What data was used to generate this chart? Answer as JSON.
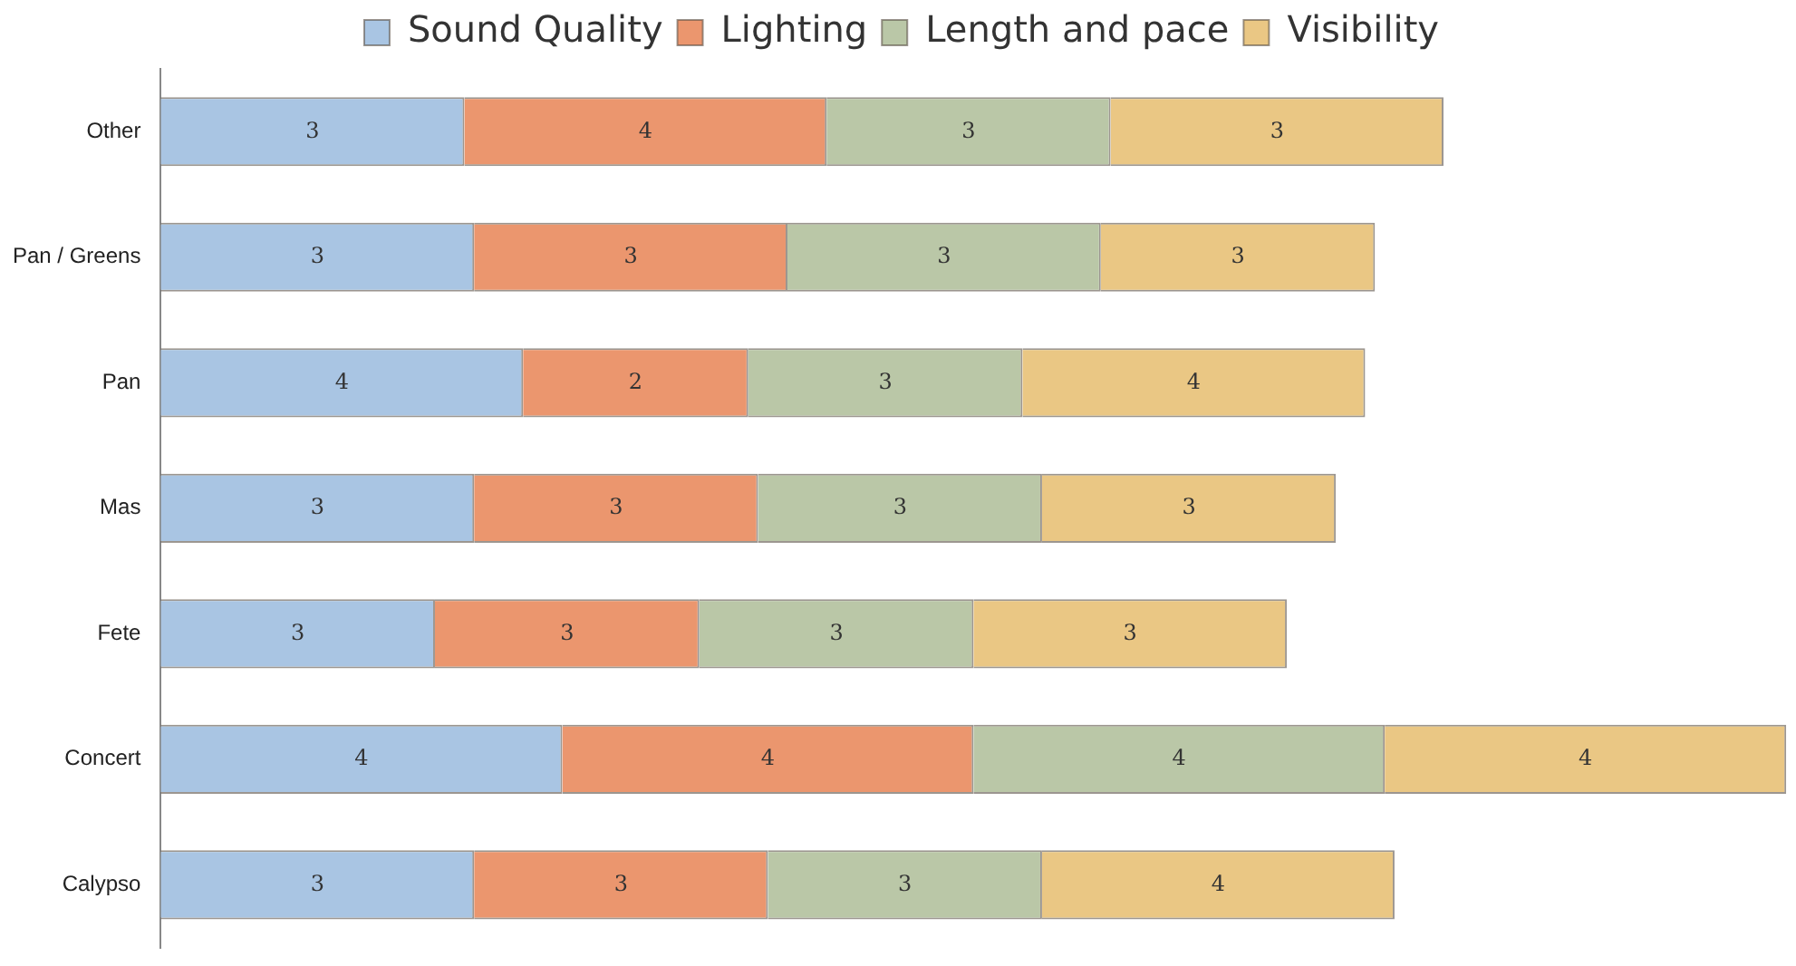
{
  "chart_data": {
    "type": "bar",
    "orientation": "horizontal",
    "stacked": true,
    "legend": "top",
    "tick_labels": "y",
    "categories": [
      "Other",
      "Pan / Greens",
      "Pan",
      "Mas",
      "Fete",
      "Concert",
      "Calypso"
    ],
    "xlim": [
      0,
      16.7
    ],
    "series": [
      {
        "name": "Sound Quality",
        "color": "#a9c5e3",
        "values": [
          3.1,
          3.2,
          3.7,
          3.2,
          2.8,
          4.1,
          3.2
        ],
        "value_labels": [
          "3",
          "3",
          "4",
          "3",
          "3",
          "4",
          "3"
        ]
      },
      {
        "name": "Lighting",
        "color": "#eb966e",
        "values": [
          3.7,
          3.2,
          2.3,
          2.9,
          2.7,
          4.2,
          3.0
        ],
        "value_labels": [
          "4",
          "3",
          "2",
          "3",
          "3",
          "4",
          "3"
        ]
      },
      {
        "name": "Length and pace",
        "color": "#bac7a7",
        "values": [
          2.9,
          3.2,
          2.8,
          2.9,
          2.8,
          4.2,
          2.8
        ],
        "value_labels": [
          "3",
          "3",
          "3",
          "3",
          "3",
          "4",
          "3"
        ]
      },
      {
        "name": "Visibility",
        "color": "#eac784",
        "values": [
          3.4,
          2.8,
          3.5,
          3.0,
          3.2,
          4.1,
          3.6
        ],
        "value_labels": [
          "3",
          "3",
          "4",
          "3",
          "3",
          "4",
          "4"
        ]
      }
    ]
  }
}
